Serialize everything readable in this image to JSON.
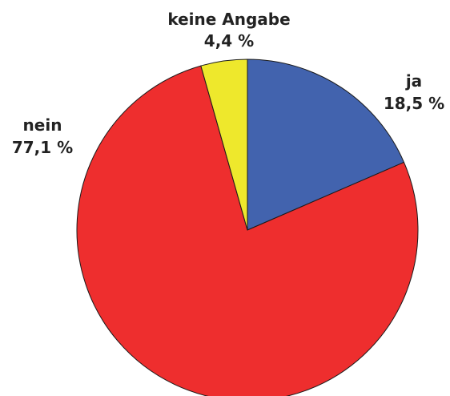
{
  "chart_data": {
    "type": "pie",
    "title": "",
    "start": "top",
    "direction": "clockwise",
    "legend": "none",
    "slices": [
      {
        "label": "ja",
        "value": 18.5,
        "value_text": "18,5 %",
        "color": "#4263ae"
      },
      {
        "label": "nein",
        "value": 77.1,
        "value_text": "77,1 %",
        "color": "#ee2e2e"
      },
      {
        "label": "keine Angabe",
        "value": 4.4,
        "value_text": "4,4 %",
        "color": "#eee82c"
      }
    ]
  }
}
